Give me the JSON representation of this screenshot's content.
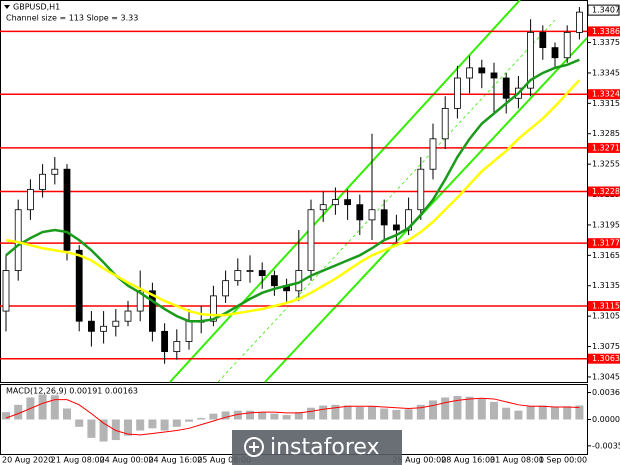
{
  "watermark": "instaforex",
  "chart_data": [
    {
      "type": "candlestick",
      "title": "GBPUSD,H1",
      "subtitle": "Channel size = 113 Slope = 3.33",
      "categories": [
        "20 Aug 2020",
        null,
        null,
        null,
        "21 Aug 08:00",
        null,
        null,
        null,
        "24 Aug 00:00",
        null,
        null,
        null,
        "24 Aug 16:00",
        null,
        null,
        null,
        "25 Aug 08:00",
        null,
        null,
        null,
        null,
        null,
        null,
        null,
        null,
        null,
        null,
        null,
        null,
        null,
        null,
        null,
        "28 Aug 00:00",
        null,
        null,
        null,
        "28 Aug 16:00",
        null,
        null,
        null,
        "31 Aug 08:00",
        null,
        null,
        null,
        "1 Sep 00:00",
        null,
        null,
        null
      ],
      "open": [
        1.311,
        1.315,
        1.321,
        1.323,
        1.3245,
        1.325,
        1.317,
        1.31,
        1.309,
        1.3095,
        1.31,
        1.311,
        1.313,
        1.309,
        1.307,
        1.308,
        1.31,
        1.31,
        1.3125,
        1.314,
        1.315,
        1.315,
        1.3145,
        1.3135,
        1.313,
        1.315,
        1.321,
        1.3215,
        1.322,
        1.3215,
        1.32,
        1.321,
        1.3195,
        1.319,
        1.321,
        1.325,
        1.328,
        1.331,
        1.334,
        1.335,
        1.3345,
        1.334,
        1.332,
        1.333,
        1.3385,
        1.337,
        1.336,
        1.3385
      ],
      "high": [
        1.3165,
        1.322,
        1.324,
        1.3255,
        1.3262,
        1.3255,
        1.3175,
        1.311,
        1.311,
        1.3112,
        1.312,
        1.315,
        1.3138,
        1.3098,
        1.3092,
        1.3112,
        1.3115,
        1.3135,
        1.315,
        1.3162,
        1.3165,
        1.3158,
        1.315,
        1.3142,
        1.319,
        1.322,
        1.3228,
        1.3232,
        1.323,
        1.3225,
        1.3285,
        1.322,
        1.3205,
        1.3222,
        1.3262,
        1.3295,
        1.3322,
        1.3352,
        1.3362,
        1.3358,
        1.3355,
        1.3345,
        1.3342,
        1.3398,
        1.3392,
        1.3375,
        1.3392,
        1.341
      ],
      "low": [
        1.309,
        1.314,
        1.32,
        1.3222,
        1.3235,
        1.316,
        1.309,
        1.3075,
        1.3078,
        1.3085,
        1.3095,
        1.31,
        1.308,
        1.3058,
        1.3062,
        1.3072,
        1.3088,
        1.3095,
        1.3118,
        1.3135,
        1.3138,
        1.3132,
        1.3125,
        1.3118,
        1.312,
        1.314,
        1.3198,
        1.3205,
        1.32,
        1.3185,
        1.318,
        1.318,
        1.3178,
        1.3185,
        1.32,
        1.324,
        1.327,
        1.33,
        1.3325,
        1.333,
        1.3305,
        1.3305,
        1.331,
        1.3322,
        1.3358,
        1.335,
        1.3355,
        1.3378
      ],
      "close": [
        1.315,
        1.321,
        1.323,
        1.3245,
        1.325,
        1.317,
        1.31,
        1.309,
        1.3095,
        1.31,
        1.311,
        1.313,
        1.309,
        1.307,
        1.308,
        1.31,
        1.31,
        1.3125,
        1.314,
        1.315,
        1.315,
        1.3145,
        1.3135,
        1.313,
        1.315,
        1.321,
        1.3215,
        1.322,
        1.3215,
        1.32,
        1.321,
        1.3195,
        1.319,
        1.321,
        1.325,
        1.328,
        1.331,
        1.334,
        1.335,
        1.3345,
        1.334,
        1.332,
        1.333,
        1.3385,
        1.337,
        1.336,
        1.3385,
        1.3405
      ],
      "lines": [
        {
          "color": "#1a9a1a",
          "values": [
            1.3165,
            1.3175,
            1.3182,
            1.3188,
            1.319,
            1.3188,
            1.318,
            1.317,
            1.3158,
            1.3145,
            1.3135,
            1.3128,
            1.312,
            1.3112,
            1.3105,
            1.31,
            1.31,
            1.3102,
            1.3108,
            1.3115,
            1.3122,
            1.3128,
            1.3132,
            1.3135,
            1.3138,
            1.3145,
            1.315,
            1.3155,
            1.316,
            1.3165,
            1.3172,
            1.318,
            1.3185,
            1.3192,
            1.3205,
            1.322,
            1.324,
            1.3262,
            1.328,
            1.3295,
            1.3305,
            1.3315,
            1.3325,
            1.3338,
            1.3345,
            1.335,
            1.3353,
            1.3358
          ]
        },
        {
          "color": "#ffff00",
          "values": [
            1.318,
            1.3178,
            1.3175,
            1.3172,
            1.317,
            1.3168,
            1.3165,
            1.316,
            1.3152,
            1.3145,
            1.3138,
            1.3132,
            1.3126,
            1.312,
            1.3115,
            1.311,
            1.3107,
            1.3106,
            1.3106,
            1.3108,
            1.311,
            1.3112,
            1.3115,
            1.3118,
            1.3122,
            1.3128,
            1.3135,
            1.3142,
            1.315,
            1.3158,
            1.3165,
            1.317,
            1.3175,
            1.318,
            1.3188,
            1.3198,
            1.321,
            1.3222,
            1.3235,
            1.3248,
            1.3258,
            1.3268,
            1.328,
            1.329,
            1.33,
            1.3312,
            1.3325,
            1.3338
          ]
        }
      ],
      "levels": [
        1.3386,
        1.3324,
        1.3271,
        1.3228,
        1.3177,
        1.3115,
        1.3063
      ],
      "level_color": "#ff0000",
      "last_price": 1.3407,
      "ylim": [
        1.304,
        1.3416
      ],
      "yticks": [
        1.3375,
        1.3345,
        1.3315,
        1.3285,
        1.3255,
        1.3225,
        1.3195,
        1.3165,
        1.3135,
        1.3105,
        1.3075,
        1.3045
      ]
    },
    {
      "type": "macd",
      "title": "MACD(12,26,9) 0.00191 0.00163",
      "color": "#b4b4b4",
      "values": [
        0.001,
        0.002,
        0.003,
        0.0034,
        0.0033,
        0.0015,
        -0.001,
        -0.0025,
        -0.003,
        -0.0028,
        -0.0022,
        -0.0015,
        -0.0012,
        -0.0015,
        -0.001,
        -0.0003,
        0.0002,
        0.0008,
        0.0011,
        0.0012,
        0.0012,
        0.001,
        0.0008,
        0.0006,
        0.001,
        0.0016,
        0.0019,
        0.002,
        0.0019,
        0.0017,
        0.0018,
        0.0015,
        0.0013,
        0.0014,
        0.002,
        0.0026,
        0.003,
        0.0032,
        0.0031,
        0.0028,
        0.0024,
        0.0016,
        0.0012,
        0.0018,
        0.0019,
        0.0017,
        0.0018,
        0.00191
      ],
      "signal": {
        "color": "#ff0000",
        "values": [
          0.0002,
          0.0008,
          0.0015,
          0.0022,
          0.0027,
          0.0027,
          0.002,
          0.0008,
          -0.0005,
          -0.0015,
          -0.002,
          -0.0021,
          -0.0019,
          -0.0017,
          -0.0015,
          -0.0012,
          -0.0007,
          -0.0002,
          0.0003,
          0.0007,
          0.0009,
          0.001,
          0.001,
          0.0009,
          0.0009,
          0.0011,
          0.0014,
          0.0016,
          0.0018,
          0.0018,
          0.0018,
          0.0017,
          0.0016,
          0.0015,
          0.0016,
          0.0019,
          0.0023,
          0.0026,
          0.0028,
          0.0029,
          0.0028,
          0.0024,
          0.002,
          0.0018,
          0.0018,
          0.0017,
          0.0017,
          0.00163
        ]
      },
      "ylim": [
        -0.0047,
        0.0047
      ],
      "yticks": [
        0.00368,
        {
          "value": 0,
          "label": "0.00000"
        },
        -0.00359
      ]
    }
  ]
}
